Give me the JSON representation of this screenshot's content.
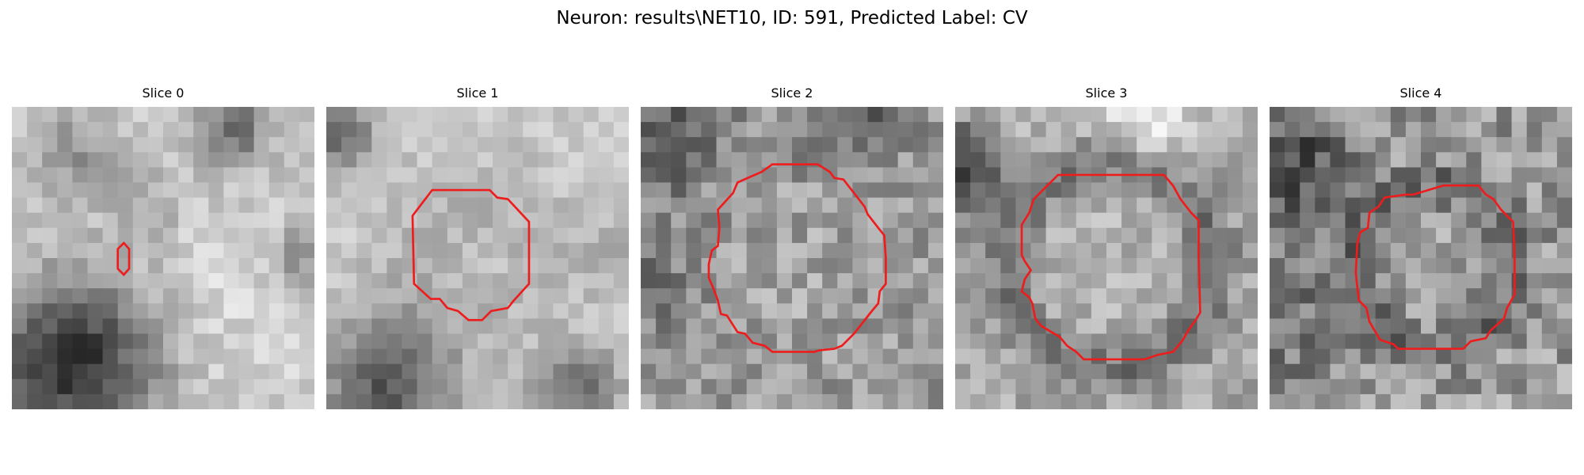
{
  "figure": {
    "title": "Neuron: results\\NET10, ID: 591, Predicted Label: CV",
    "contour_color": "#ee1c1c"
  },
  "panels": [
    {
      "title": "Slice 0"
    },
    {
      "title": "Slice 1"
    },
    {
      "title": "Slice 2"
    },
    {
      "title": "Slice 3"
    },
    {
      "title": "Slice 4"
    }
  ]
}
